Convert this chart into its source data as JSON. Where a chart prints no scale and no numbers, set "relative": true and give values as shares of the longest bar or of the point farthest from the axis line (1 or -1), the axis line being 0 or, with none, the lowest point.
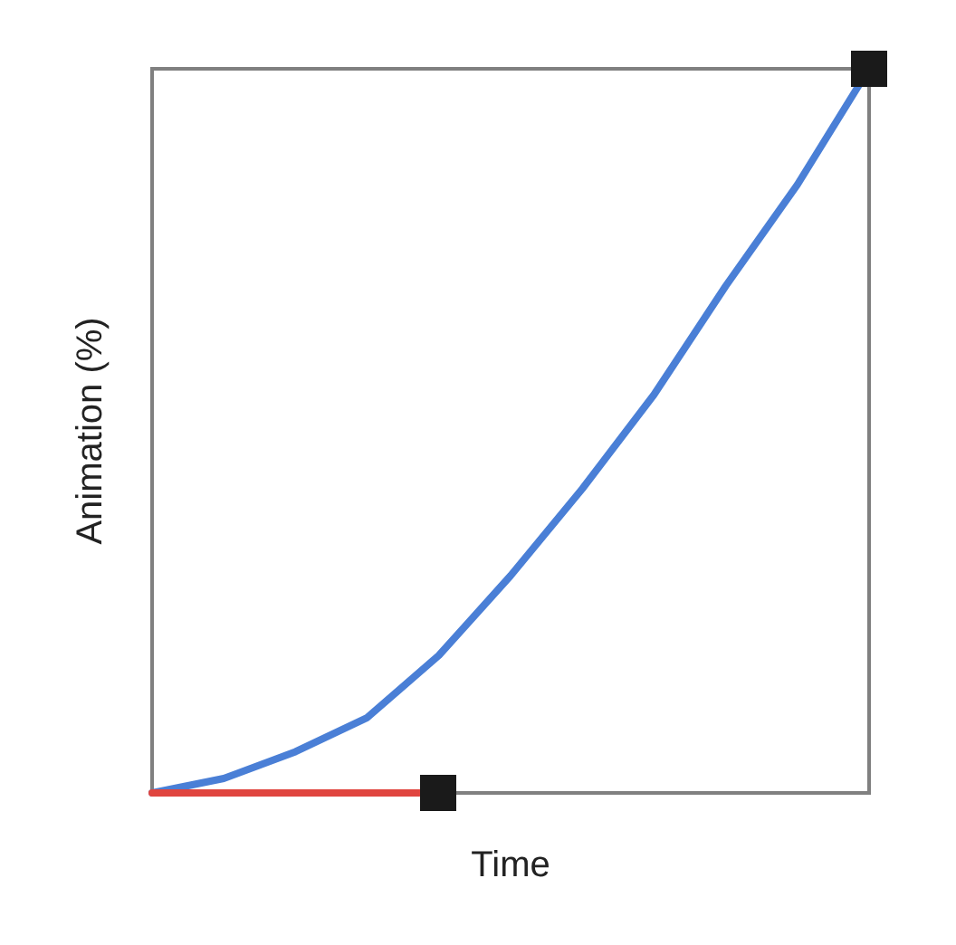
{
  "chart_data": {
    "type": "line",
    "relative": true,
    "xlabel": "Time",
    "ylabel": "Animation (%)",
    "categories": [
      null,
      null,
      null,
      null,
      null,
      null,
      null,
      null,
      null,
      null,
      null
    ],
    "series": [
      {
        "color": "#4a7fd6",
        "values": [
          0,
          0.02,
          0.057,
          0.104,
          0.19,
          0.3,
          0.42,
          0.55,
          0.7,
          0.84,
          1
        ]
      },
      {
        "color": "#e0453f",
        "values": [
          0,
          0,
          0,
          0,
          0,
          null,
          null,
          null,
          null,
          null,
          null
        ]
      }
    ]
  }
}
